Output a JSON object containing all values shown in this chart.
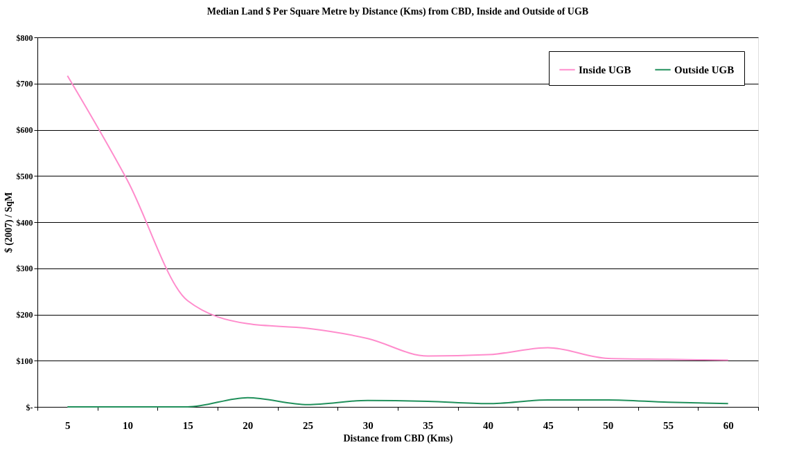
{
  "chart_data": {
    "type": "line",
    "title": "Median Land $ Per Square Metre by Distance (Kms) from CBD, Inside and Outside of UGB",
    "xlabel": "Distance from CBD (Kms)",
    "ylabel": "$ (2007) / SqM",
    "categories": [
      "5",
      "10",
      "15",
      "20",
      "25",
      "30",
      "35",
      "40",
      "45",
      "50",
      "55",
      "60"
    ],
    "series": [
      {
        "name": "Inside UGB",
        "color": "#ff8ccc",
        "values": [
          717,
          490,
          230,
          180,
          170,
          148,
          110,
          113,
          128,
          105,
          103,
          101
        ]
      },
      {
        "name": "Outside UGB",
        "color": "#1f8f5a",
        "values": [
          0,
          0,
          0,
          20,
          5,
          14,
          12,
          7,
          15,
          15,
          10,
          7
        ]
      }
    ],
    "ylim": [
      0,
      800
    ],
    "yticks": [
      {
        "value": 0,
        "label": "$-"
      },
      {
        "value": 100,
        "label": "$100"
      },
      {
        "value": 200,
        "label": "$200"
      },
      {
        "value": 300,
        "label": "$300"
      },
      {
        "value": 400,
        "label": "$400"
      },
      {
        "value": 500,
        "label": "$500"
      },
      {
        "value": 600,
        "label": "$600"
      },
      {
        "value": 700,
        "label": "$700"
      },
      {
        "value": 800,
        "label": "$800"
      }
    ],
    "grid": "y",
    "legend": "top right",
    "marker": "none",
    "line_style": "solid"
  }
}
